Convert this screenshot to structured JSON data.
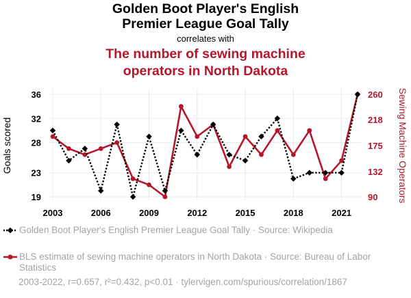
{
  "title_line1": "Golden Boot Player's English",
  "title_line2": "Premier League Goal Tally",
  "correlates_with": "correlates with",
  "title2_line1": "The number of sewing machine",
  "title2_line2": "operators in North Dakota",
  "colors": {
    "series1": "#000000",
    "series2": "#b5162b",
    "grid": "#e8e8e8",
    "muted": "#a3a3a3"
  },
  "legend": {
    "series1": "Golden Boot Player's English Premier League Goal Tally · Source: Wikipedia",
    "series2": "BLS estimate of sewing machine operators in North Dakota · Source: Bureau of Labor Statistics"
  },
  "footer": "2003-2022, r=0.657, r²=0.432, p<0.01 · tylervigen.com/spurious/correlation/1867",
  "chart_data": {
    "type": "line",
    "xlabel": "",
    "x_ticks": [
      "2003",
      "2006",
      "2009",
      "2012",
      "2015",
      "2018",
      "2021"
    ],
    "xlim": [
      2003,
      2022
    ],
    "y_left": {
      "label": "Goals scored",
      "ticks": [
        "19",
        "23",
        "28",
        "32",
        "36"
      ],
      "ylim": [
        19,
        36
      ]
    },
    "y_right": {
      "label": "Sewing Machine Operators",
      "ticks": [
        "90",
        "132",
        "175",
        "218",
        "260"
      ],
      "ylim": [
        90,
        260
      ]
    },
    "grid": true,
    "series": [
      {
        "name": "Golden Boot Player's English Premier League Goal Tally",
        "axis": "left",
        "style": "dotted",
        "marker": "diamond",
        "x": [
          2003,
          2004,
          2005,
          2006,
          2007,
          2008,
          2009,
          2010,
          2011,
          2012,
          2013,
          2014,
          2015,
          2016,
          2017,
          2018,
          2019,
          2020,
          2021,
          2022
        ],
        "y": [
          30,
          25,
          27,
          20,
          31,
          19,
          29,
          20,
          30,
          26,
          31,
          26,
          25,
          29,
          32,
          22,
          23,
          23,
          23,
          36
        ]
      },
      {
        "name": "BLS estimate of sewing machine operators in North Dakota",
        "axis": "right",
        "style": "solid",
        "marker": "circle",
        "x": [
          2003,
          2004,
          2005,
          2006,
          2007,
          2008,
          2009,
          2010,
          2011,
          2012,
          2013,
          2014,
          2015,
          2016,
          2017,
          2018,
          2019,
          2020,
          2021,
          2022
        ],
        "y": [
          190,
          170,
          160,
          170,
          180,
          120,
          110,
          90,
          240,
          190,
          210,
          140,
          190,
          160,
          200,
          160,
          200,
          120,
          150,
          260
        ]
      }
    ]
  }
}
